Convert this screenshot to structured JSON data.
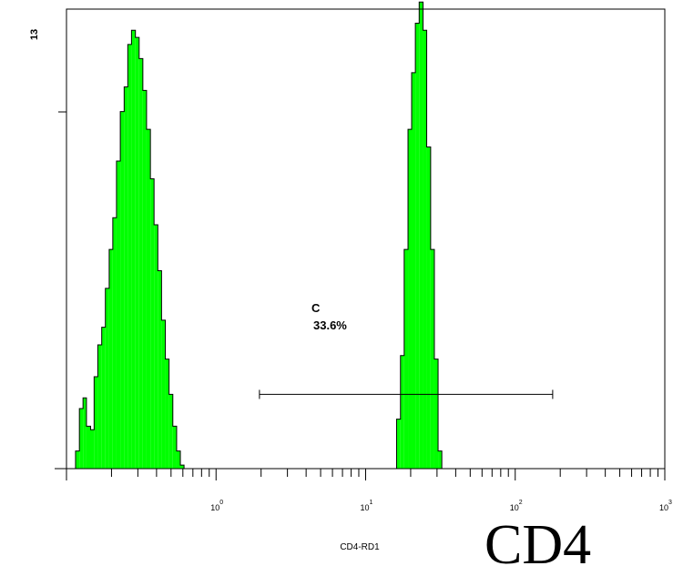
{
  "chart_data": {
    "type": "histogram",
    "xlabel": "CD4-RD1",
    "x_scale": "log",
    "xlim": [
      0.1,
      1000
    ],
    "ylim": [
      0,
      13
    ],
    "y_max_label": "13",
    "x_tick_labels": [
      {
        "value": 1,
        "base": "10",
        "exp": "0"
      },
      {
        "value": 10,
        "base": "10",
        "exp": "1"
      },
      {
        "value": 100,
        "base": "10",
        "exp": "2"
      },
      {
        "value": 1000,
        "base": "10",
        "exp": "3"
      }
    ],
    "fill_color": "#00ff00",
    "outline_color": "#000000",
    "series": [
      {
        "bins": [
          [
            0.115,
            0.5
          ],
          [
            0.122,
            1.7
          ],
          [
            0.129,
            2.0
          ],
          [
            0.136,
            1.2
          ],
          [
            0.145,
            1.1
          ],
          [
            0.153,
            2.6
          ],
          [
            0.162,
            3.5
          ],
          [
            0.172,
            4.0
          ],
          [
            0.182,
            5.1
          ],
          [
            0.193,
            6.2
          ],
          [
            0.204,
            7.1
          ],
          [
            0.216,
            8.7
          ],
          [
            0.229,
            10.1
          ],
          [
            0.243,
            10.8
          ],
          [
            0.257,
            12.0
          ],
          [
            0.272,
            12.4
          ],
          [
            0.289,
            12.2
          ],
          [
            0.306,
            11.6
          ],
          [
            0.324,
            10.7
          ],
          [
            0.343,
            9.6
          ],
          [
            0.364,
            8.2
          ],
          [
            0.385,
            6.9
          ],
          [
            0.408,
            5.6
          ],
          [
            0.432,
            4.2
          ],
          [
            0.458,
            3.1
          ],
          [
            0.485,
            2.1
          ],
          [
            0.514,
            1.2
          ],
          [
            0.545,
            0.5
          ],
          [
            0.577,
            0.1
          ]
        ]
      },
      {
        "bins": [
          [
            16.1,
            1.4
          ],
          [
            17.1,
            3.2
          ],
          [
            18.1,
            6.2
          ],
          [
            19.2,
            9.6
          ],
          [
            20.3,
            11.2
          ],
          [
            21.5,
            12.6
          ],
          [
            22.8,
            13.2
          ],
          [
            24.2,
            12.4
          ],
          [
            25.6,
            9.1
          ],
          [
            27.2,
            6.2
          ],
          [
            28.8,
            3.1
          ],
          [
            30.5,
            0.5
          ]
        ]
      }
    ],
    "gate": {
      "name": "C",
      "percent_label": "33.6%",
      "x_range": [
        1.95,
        178
      ],
      "y": 2.1
    }
  },
  "big_label": "CD4"
}
